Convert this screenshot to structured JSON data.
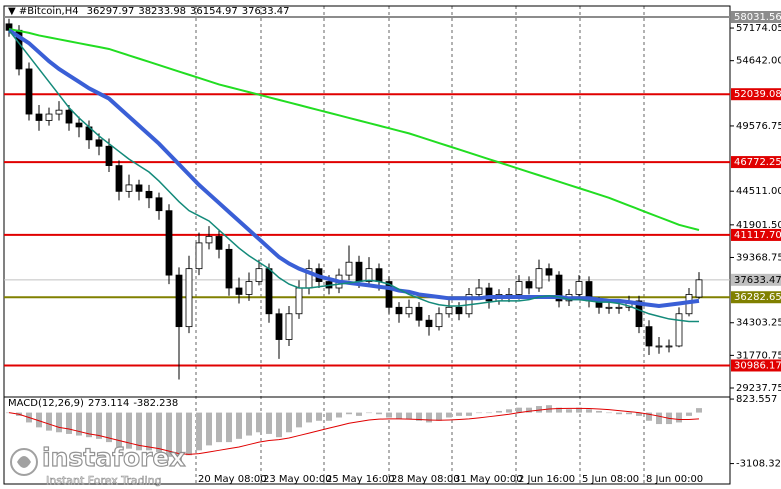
{
  "chart_data": {
    "type": "candlestick",
    "title": "#Bitcoin,H4",
    "open": [
      57500,
      57000,
      54000,
      50500,
      50000,
      50500,
      50800,
      49800,
      49500,
      48500,
      48000,
      46500,
      44500,
      45000,
      44500,
      44000,
      43000,
      38000,
      34000,
      38500,
      40500,
      41000,
      40000,
      37000,
      36500,
      37500,
      38500,
      35000,
      33000,
      35000,
      37000,
      38500,
      37500,
      37000,
      38000,
      39000,
      37500,
      38500,
      37500,
      35500,
      35000,
      35500,
      34500,
      34000,
      35000,
      35500,
      35000,
      36500,
      37000,
      36000,
      36500,
      36500,
      37500,
      37000,
      38500,
      38000,
      36000,
      36500,
      37500,
      36000,
      35500,
      35500,
      35500,
      36000,
      34000,
      32500,
      32500,
      32500,
      35000,
      36297.97
    ],
    "high": [
      57900,
      57400,
      54500,
      51200,
      51000,
      51500,
      51200,
      50300,
      50000,
      49000,
      48600,
      46900,
      45800,
      45400,
      45000,
      44400,
      43500,
      38600,
      39500,
      41300,
      41800,
      41500,
      40400,
      37800,
      38200,
      39200,
      38900,
      35400,
      35600,
      37600,
      39200,
      38900,
      38000,
      38500,
      40300,
      39500,
      39400,
      38900,
      37900,
      35900,
      36100,
      35900,
      34900,
      35500,
      36100,
      35900,
      37000,
      37700,
      37400,
      36900,
      37000,
      38000,
      37900,
      39200,
      38900,
      38300,
      36900,
      38000,
      37900,
      36300,
      36000,
      36000,
      36400,
      36400,
      34500,
      33200,
      33000,
      35500,
      37000,
      38233.98
    ],
    "low": [
      56500,
      53500,
      50000,
      49200,
      49600,
      50000,
      49200,
      48700,
      47800,
      47300,
      46000,
      43800,
      44000,
      43800,
      43200,
      42300,
      37300,
      29900,
      33500,
      38000,
      40000,
      39300,
      36400,
      35800,
      36000,
      37200,
      34300,
      31500,
      32500,
      34600,
      36500,
      37000,
      36500,
      36600,
      37600,
      37000,
      37200,
      36800,
      35000,
      34300,
      34700,
      34000,
      33300,
      33700,
      34700,
      34500,
      34700,
      36300,
      35400,
      35700,
      35900,
      36100,
      36500,
      36700,
      37500,
      35500,
      35600,
      36200,
      35500,
      35000,
      35000,
      35000,
      35200,
      33500,
      31800,
      31900,
      32000,
      32400,
      34800,
      36154.97
    ],
    "close": [
      57000,
      54000,
      50500,
      50000,
      50500,
      50800,
      49800,
      49500,
      48500,
      48000,
      46500,
      44500,
      45000,
      44500,
      44000,
      43000,
      38000,
      34000,
      38500,
      40500,
      41000,
      40000,
      37000,
      36500,
      37500,
      38500,
      35000,
      33000,
      35000,
      37000,
      38500,
      37500,
      37000,
      38000,
      39000,
      37500,
      38500,
      37500,
      35500,
      35000,
      35500,
      34500,
      34000,
      35000,
      35500,
      35000,
      36500,
      37000,
      36000,
      36500,
      36500,
      37500,
      37000,
      38500,
      38000,
      36000,
      36500,
      37500,
      36000,
      35500,
      35500,
      35500,
      36000,
      34000,
      32500,
      32500,
      32500,
      35000,
      36500,
      37633.47
    ],
    "moving_averages": [
      {
        "color": "#22dd22",
        "width": 2,
        "values": [
          57100,
          56950,
          56800,
          56600,
          56450,
          56300,
          56150,
          56000,
          55850,
          55700,
          55550,
          55300,
          55050,
          54800,
          54550,
          54300,
          54050,
          53800,
          53550,
          53300,
          53050,
          52800,
          52600,
          52400,
          52200,
          52000,
          51800,
          51600,
          51400,
          51200,
          51000,
          50800,
          50600,
          50400,
          50200,
          50000,
          49800,
          49600,
          49400,
          49200,
          49000,
          48750,
          48500,
          48250,
          48000,
          47750,
          47500,
          47250,
          47000,
          46750,
          46500,
          46250,
          46000,
          45750,
          45500,
          45250,
          45000,
          44750,
          44500,
          44250,
          44000,
          43700,
          43400,
          43100,
          42800,
          42500,
          42200,
          41900,
          41700,
          41500
        ]
      },
      {
        "color": "#3a5fd6",
        "width": 4,
        "values": [
          57000,
          56500,
          56000,
          55300,
          54600,
          54000,
          53500,
          53000,
          52500,
          52100,
          51700,
          51000,
          50300,
          49600,
          48900,
          48200,
          47400,
          46600,
          45800,
          45000,
          44300,
          43600,
          42900,
          42200,
          41500,
          40800,
          40100,
          39400,
          38900,
          38500,
          38200,
          37900,
          37700,
          37500,
          37400,
          37300,
          37200,
          37100,
          37000,
          36800,
          36700,
          36500,
          36400,
          36300,
          36200,
          36200,
          36200,
          36200,
          36300,
          36300,
          36300,
          36300,
          36300,
          36300,
          36300,
          36300,
          36200,
          36200,
          36200,
          36100,
          36000,
          36000,
          35900,
          35800,
          35700,
          35600,
          35700,
          35800,
          35900,
          36000
        ]
      },
      {
        "color": "#138a7a",
        "width": 1.5,
        "values": [
          57000,
          56000,
          55000,
          54000,
          53000,
          52000,
          51000,
          50200,
          49500,
          48800,
          48200,
          47600,
          47000,
          46500,
          46000,
          45300,
          44500,
          43700,
          43000,
          42600,
          42200,
          41500,
          40800,
          40100,
          39500,
          39000,
          38500,
          37800,
          37300,
          37000,
          37000,
          37100,
          37200,
          37300,
          37400,
          37500,
          37600,
          37500,
          37300,
          36900,
          36500,
          36200,
          35900,
          35700,
          35600,
          35600,
          35700,
          35800,
          35900,
          36000,
          36000,
          36000,
          36100,
          36300,
          36400,
          36300,
          36100,
          36100,
          36000,
          35900,
          35900,
          35800,
          35600,
          35300,
          35000,
          34800,
          34600,
          34500,
          34400,
          34400
        ]
      }
    ],
    "levels": [
      {
        "value": 58031.56,
        "color": "#8c8c8c"
      },
      {
        "value": 52039.08,
        "color": "#e00000"
      },
      {
        "value": 46772.25,
        "color": "#e00000"
      },
      {
        "value": 41117.7,
        "label": "41117.70",
        "color": "#e00000"
      },
      {
        "value": 36282.65,
        "color": "#808000"
      },
      {
        "value": 30986.17,
        "color": "#e00000"
      }
    ],
    "price_line_color": "#c0c0c0",
    "ylim": [
      28540,
      58730
    ],
    "yticks": [
      57174.05,
      {
        "value": 54642,
        "label": "54642.00"
      },
      49576.75,
      {
        "value": 44511,
        "label": "44511.00"
      },
      {
        "value": 41901.5,
        "label": "41901.50"
      },
      39368.75,
      34303.25,
      31770.75,
      29237.75
    ],
    "grid": true,
    "time_labels": [
      "20 May 08:00",
      "23 May 00:00",
      "25 May 16:00",
      "28 May 08:00",
      "31 May 00:00",
      "2 Jun 16:00",
      "5 Jun 08:00",
      "8 Jun 00:00"
    ],
    "macd": {
      "title": "MACD(12,26,9)",
      "histogram_color": "#b4b4b4",
      "signal_color": "#e00000",
      "histogram": [
        0,
        -200,
        -600,
        -900,
        -1100,
        -1200,
        -1300,
        -1400,
        -1500,
        -1600,
        -1800,
        -2100,
        -2200,
        -2300,
        -2300,
        -2400,
        -2700,
        -3000,
        -2600,
        -2300,
        -2000,
        -1800,
        -1800,
        -1600,
        -1400,
        -1200,
        -1300,
        -1500,
        -1200,
        -900,
        -600,
        -500,
        -500,
        -300,
        -100,
        -200,
        0,
        -100,
        -300,
        -400,
        -400,
        -500,
        -600,
        -500,
        -300,
        -200,
        -200,
        0,
        0,
        100,
        200,
        300,
        300,
        400,
        450,
        300,
        200,
        300,
        200,
        100,
        0,
        -100,
        -100,
        -200,
        -500,
        -700,
        -700,
        -600,
        -200,
        273.114
      ],
      "signal": [
        0,
        -100,
        -300,
        -500,
        -700,
        -900,
        -1000,
        -1150,
        -1300,
        -1400,
        -1550,
        -1700,
        -1850,
        -2000,
        -2100,
        -2200,
        -2350,
        -2500,
        -2550,
        -2500,
        -2400,
        -2300,
        -2200,
        -2100,
        -1950,
        -1800,
        -1700,
        -1650,
        -1550,
        -1400,
        -1250,
        -1100,
        -950,
        -800,
        -650,
        -550,
        -450,
        -400,
        -380,
        -380,
        -400,
        -420,
        -450,
        -470,
        -450,
        -420,
        -380,
        -320,
        -250,
        -180,
        -100,
        0,
        80,
        150,
        220,
        250,
        260,
        260,
        250,
        220,
        180,
        120,
        60,
        0,
        -100,
        -220,
        -350,
        -420,
        -420,
        -382.238
      ],
      "ylim": [
        -3500,
        950
      ],
      "yticks": [
        823.557,
        -3108.327
      ]
    },
    "watermark": {
      "brand": "instaforex",
      "tagline": "Instant Forex Trading"
    }
  }
}
